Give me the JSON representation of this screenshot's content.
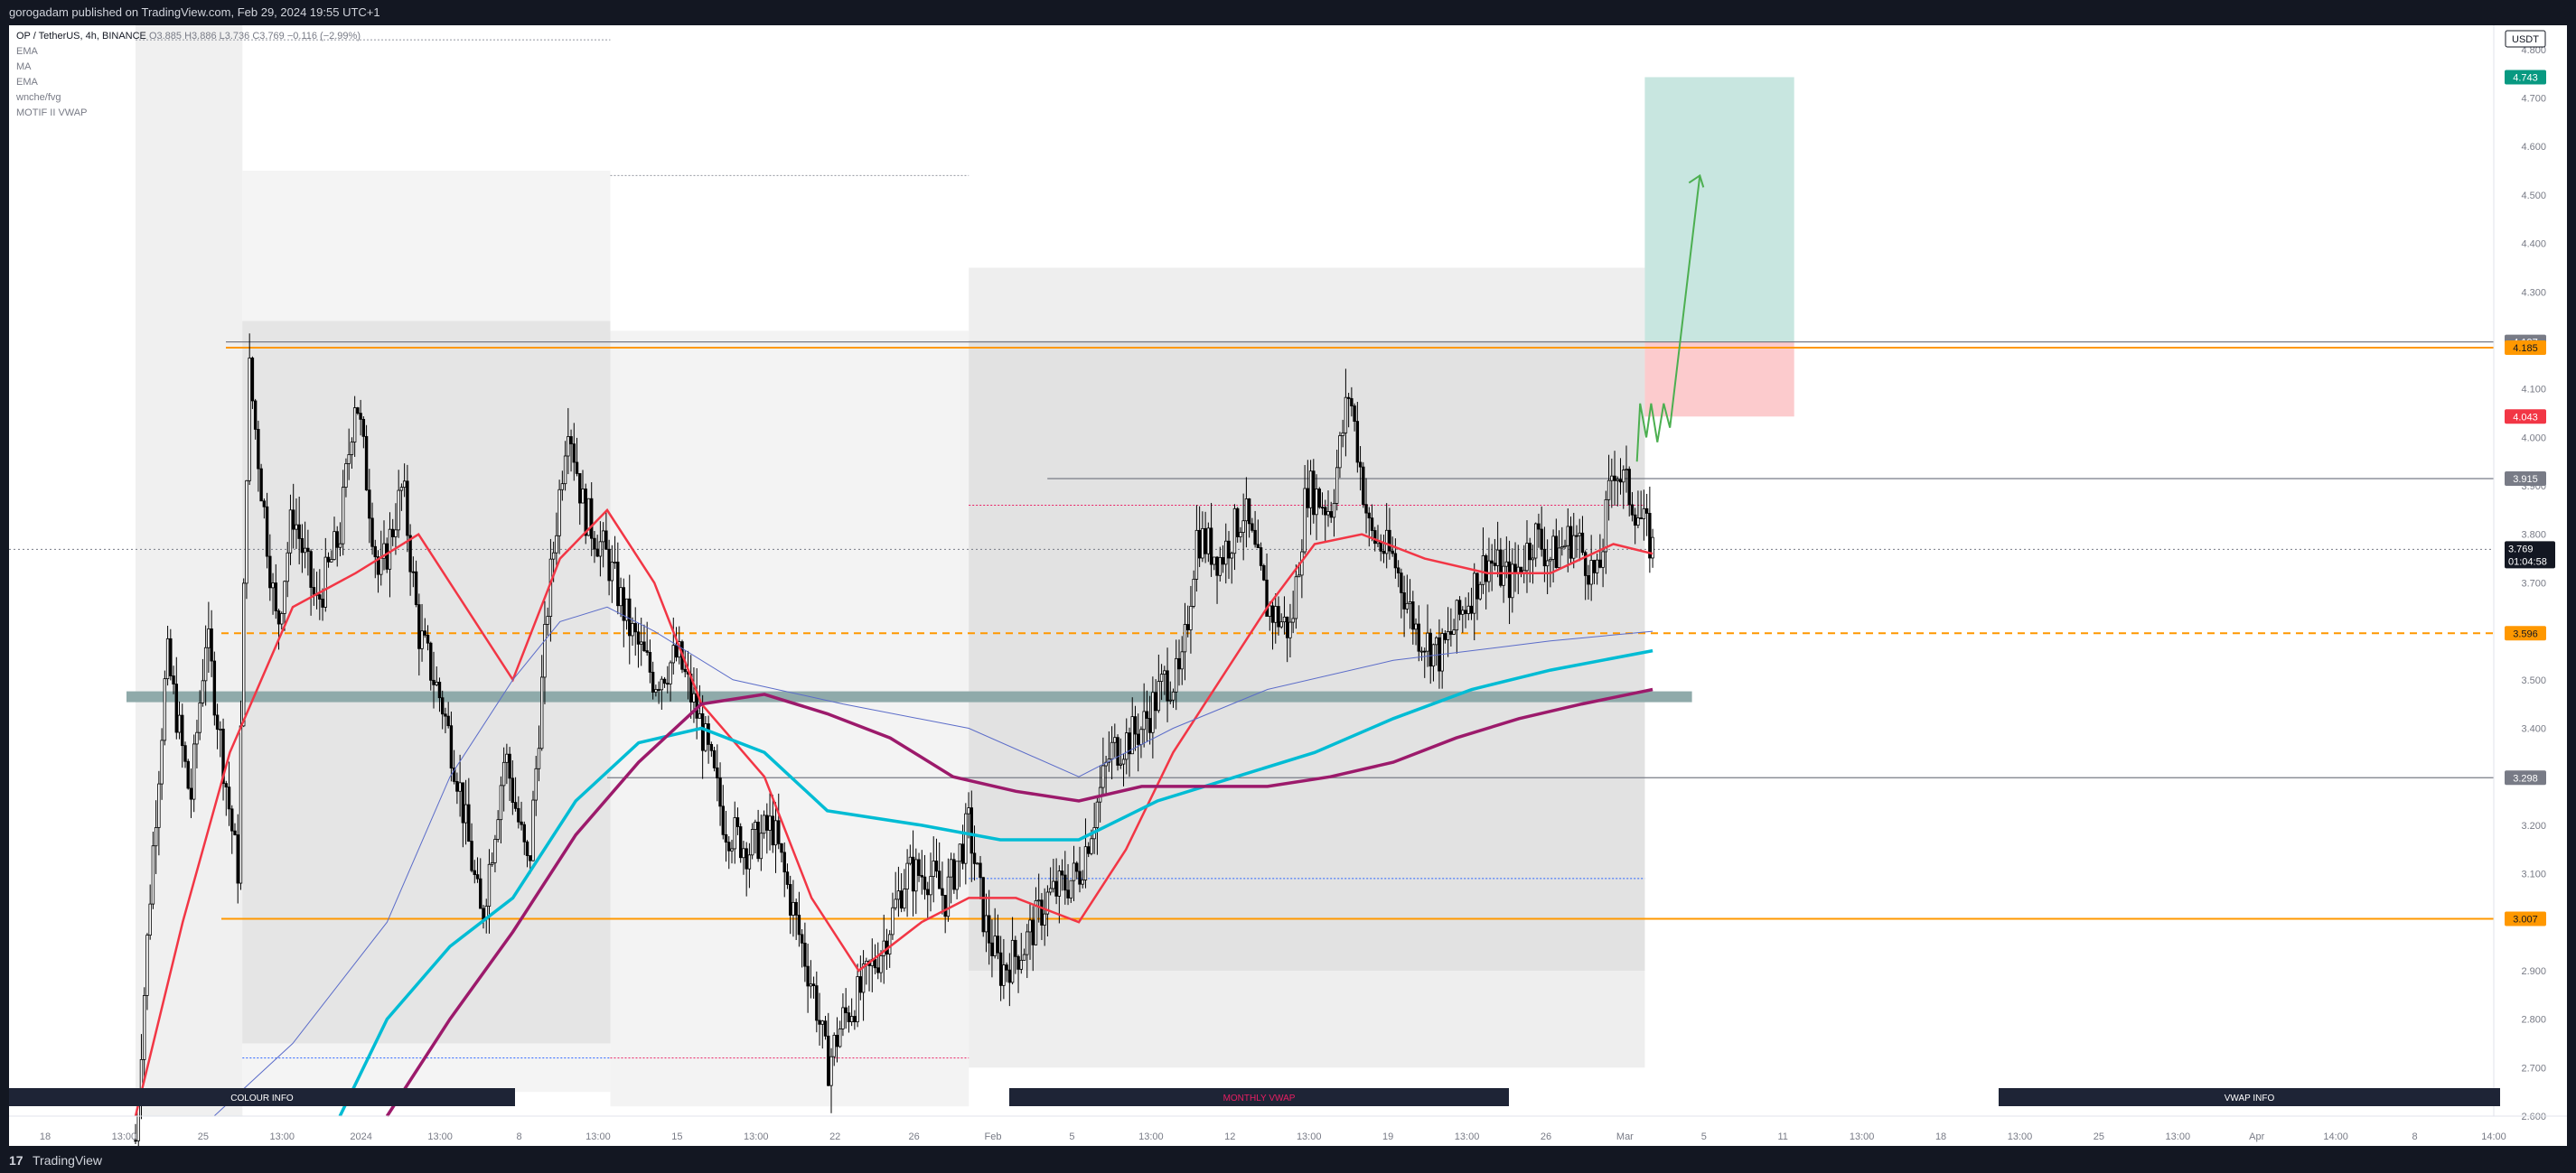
{
  "header": {
    "published": "gorogadam published on TradingView.com, Feb 29, 2024 19:55 UTC+1"
  },
  "footer": {
    "brand": "TradingView",
    "logo_icon": "tradingview-logo-icon"
  },
  "legend": {
    "symbol": "OP / TetherUS, 4h, BINANCE",
    "ohlc": "O3.885 H3.886 L3.736 C3.769 −0.116 (−2.99%)",
    "indicators": [
      "EMA",
      "MA",
      "EMA",
      "wnche/fvg",
      "MOTIF II VWAP"
    ]
  },
  "chart_data": {
    "type": "candlestick",
    "symbol": "OP / TetherUS",
    "interval": "4h",
    "exchange": "BINANCE",
    "currency": "USDT",
    "ylim": [
      2.6,
      4.85
    ],
    "y_ticks": [
      "4.800",
      "4.700",
      "4.600",
      "4.500",
      "4.400",
      "4.300",
      "4.200",
      "4.100",
      "4.000",
      "3.900",
      "3.800",
      "3.700",
      "3.600",
      "3.500",
      "3.400",
      "3.300",
      "3.200",
      "3.100",
      "3.000",
      "2.900",
      "2.800",
      "2.700",
      "2.600"
    ],
    "x_ticks": [
      "18",
      "13:00",
      "25",
      "13:00",
      "2024",
      "13:00",
      "8",
      "13:00",
      "15",
      "13:00",
      "22",
      "26",
      "Feb",
      "5",
      "13:00",
      "12",
      "13:00",
      "19",
      "13:00",
      "26",
      "Mar",
      "5",
      "11",
      "13:00",
      "18",
      "13:00",
      "25",
      "13:00",
      "Apr",
      "14:00",
      "8",
      "14:00"
    ],
    "price_path": [
      [
        0,
        2.55
      ],
      [
        0.01,
        3.1
      ],
      [
        0.02,
        3.55
      ],
      [
        0.035,
        3.25
      ],
      [
        0.045,
        3.6
      ],
      [
        0.055,
        3.35
      ],
      [
        0.065,
        3.1
      ],
      [
        0.072,
        4.15
      ],
      [
        0.08,
        3.9
      ],
      [
        0.09,
        3.6
      ],
      [
        0.1,
        3.85
      ],
      [
        0.115,
        3.65
      ],
      [
        0.13,
        3.8
      ],
      [
        0.14,
        4.1
      ],
      [
        0.155,
        3.7
      ],
      [
        0.17,
        3.9
      ],
      [
        0.18,
        3.6
      ],
      [
        0.195,
        3.45
      ],
      [
        0.205,
        3.3
      ],
      [
        0.22,
        3.0
      ],
      [
        0.235,
        3.35
      ],
      [
        0.25,
        3.1
      ],
      [
        0.262,
        3.65
      ],
      [
        0.275,
        4.05
      ],
      [
        0.285,
        3.85
      ],
      [
        0.3,
        3.75
      ],
      [
        0.315,
        3.6
      ],
      [
        0.33,
        3.5
      ],
      [
        0.345,
        3.55
      ],
      [
        0.36,
        3.4
      ],
      [
        0.375,
        3.2
      ],
      [
        0.39,
        3.15
      ],
      [
        0.405,
        3.2
      ],
      [
        0.42,
        3.0
      ],
      [
        0.432,
        2.85
      ],
      [
        0.44,
        2.7
      ],
      [
        0.45,
        2.8
      ],
      [
        0.46,
        2.85
      ],
      [
        0.475,
        2.95
      ],
      [
        0.49,
        3.1
      ],
      [
        0.505,
        3.1
      ],
      [
        0.515,
        3.05
      ],
      [
        0.53,
        3.2
      ],
      [
        0.54,
        3.0
      ],
      [
        0.55,
        2.9
      ],
      [
        0.565,
        2.95
      ],
      [
        0.58,
        3.05
      ],
      [
        0.6,
        3.1
      ],
      [
        0.62,
        3.35
      ],
      [
        0.64,
        3.4
      ],
      [
        0.655,
        3.5
      ],
      [
        0.665,
        3.5
      ],
      [
        0.675,
        3.8
      ],
      [
        0.69,
        3.75
      ],
      [
        0.705,
        3.85
      ],
      [
        0.72,
        3.65
      ],
      [
        0.735,
        3.6
      ],
      [
        0.745,
        3.9
      ],
      [
        0.76,
        3.85
      ],
      [
        0.772,
        4.1
      ],
      [
        0.785,
        3.8
      ],
      [
        0.8,
        3.75
      ],
      [
        0.815,
        3.6
      ],
      [
        0.83,
        3.55
      ],
      [
        0.845,
        3.65
      ],
      [
        0.86,
        3.75
      ],
      [
        0.875,
        3.7
      ],
      [
        0.89,
        3.8
      ],
      [
        0.9,
        3.75
      ],
      [
        0.915,
        3.8
      ],
      [
        0.93,
        3.7
      ],
      [
        0.94,
        3.95
      ],
      [
        0.955,
        3.85
      ],
      [
        0.965,
        3.77
      ]
    ],
    "series": [
      {
        "name": "EMA",
        "color": "#f23645",
        "points": [
          [
            0,
            2.6
          ],
          [
            0.03,
            3.0
          ],
          [
            0.06,
            3.35
          ],
          [
            0.1,
            3.65
          ],
          [
            0.14,
            3.72
          ],
          [
            0.18,
            3.8
          ],
          [
            0.2,
            3.7
          ],
          [
            0.24,
            3.5
          ],
          [
            0.27,
            3.75
          ],
          [
            0.3,
            3.85
          ],
          [
            0.33,
            3.7
          ],
          [
            0.36,
            3.45
          ],
          [
            0.4,
            3.3
          ],
          [
            0.43,
            3.05
          ],
          [
            0.46,
            2.9
          ],
          [
            0.5,
            3.0
          ],
          [
            0.53,
            3.05
          ],
          [
            0.56,
            3.05
          ],
          [
            0.6,
            3.0
          ],
          [
            0.63,
            3.15
          ],
          [
            0.66,
            3.35
          ],
          [
            0.69,
            3.5
          ],
          [
            0.72,
            3.65
          ],
          [
            0.75,
            3.78
          ],
          [
            0.78,
            3.8
          ],
          [
            0.82,
            3.75
          ],
          [
            0.86,
            3.72
          ],
          [
            0.9,
            3.72
          ],
          [
            0.94,
            3.78
          ],
          [
            0.965,
            3.76
          ]
        ]
      },
      {
        "name": "EMA",
        "color": "#00bcd4",
        "points": [
          [
            0.13,
            2.6
          ],
          [
            0.16,
            2.8
          ],
          [
            0.2,
            2.95
          ],
          [
            0.24,
            3.05
          ],
          [
            0.28,
            3.25
          ],
          [
            0.32,
            3.37
          ],
          [
            0.36,
            3.4
          ],
          [
            0.4,
            3.35
          ],
          [
            0.44,
            3.23
          ],
          [
            0.5,
            3.2
          ],
          [
            0.55,
            3.17
          ],
          [
            0.6,
            3.17
          ],
          [
            0.65,
            3.25
          ],
          [
            0.7,
            3.3
          ],
          [
            0.75,
            3.35
          ],
          [
            0.8,
            3.42
          ],
          [
            0.85,
            3.48
          ],
          [
            0.9,
            3.52
          ],
          [
            0.965,
            3.56
          ]
        ]
      },
      {
        "name": "MA",
        "color": "#9c1a6b",
        "points": [
          [
            0.16,
            2.6
          ],
          [
            0.2,
            2.8
          ],
          [
            0.24,
            2.98
          ],
          [
            0.28,
            3.18
          ],
          [
            0.32,
            3.33
          ],
          [
            0.36,
            3.45
          ],
          [
            0.4,
            3.47
          ],
          [
            0.44,
            3.43
          ],
          [
            0.48,
            3.38
          ],
          [
            0.52,
            3.3
          ],
          [
            0.56,
            3.27
          ],
          [
            0.6,
            3.25
          ],
          [
            0.64,
            3.28
          ],
          [
            0.68,
            3.28
          ],
          [
            0.72,
            3.28
          ],
          [
            0.76,
            3.3
          ],
          [
            0.8,
            3.33
          ],
          [
            0.84,
            3.38
          ],
          [
            0.88,
            3.42
          ],
          [
            0.92,
            3.45
          ],
          [
            0.965,
            3.48
          ]
        ]
      }
    ],
    "levels": [
      {
        "value": 4.197,
        "label": "4.197",
        "color": "#787b86"
      },
      {
        "value": 4.185,
        "label": "4.185",
        "color": "#ff9800"
      },
      {
        "value": 3.915,
        "label": "3.915",
        "color": "#787b86"
      },
      {
        "value": 3.596,
        "label": "3.596",
        "color": "#ff9800"
      },
      {
        "value": 3.298,
        "label": "3.298",
        "color": "#787b86"
      },
      {
        "value": 3.007,
        "label": "3.007",
        "color": "#ff9800"
      }
    ],
    "position": {
      "target": 4.743,
      "entry": 4.197,
      "stop": 4.043,
      "target_color": "#089981",
      "stop_color": "#f23645"
    },
    "current_price": {
      "value": 3.769,
      "label": "3.769",
      "countdown": "01:04:58"
    },
    "support_zone": 3.465,
    "section_labels": [
      "COLOUR INFO",
      "MONTHLY VWAP",
      "VWAP INFO"
    ],
    "colors": {
      "bullish": "#ffffff",
      "bearish": "#000000",
      "target_zone": "#c8e6e0",
      "stop_zone": "#fccbcd",
      "zone_band": "#8faaaa",
      "label_bg": "#1e2436"
    }
  }
}
